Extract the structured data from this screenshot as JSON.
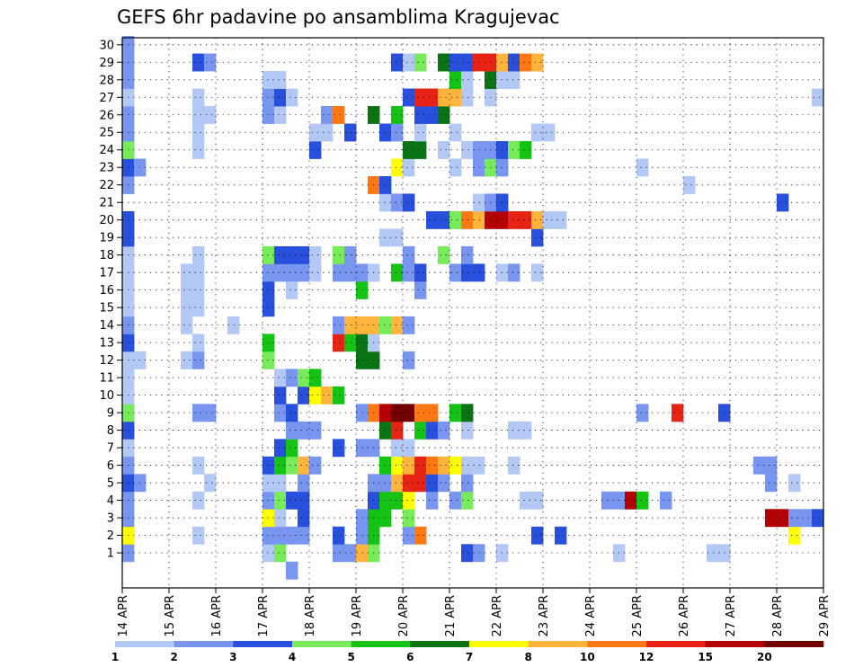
{
  "chart_data": {
    "type": "heatmap",
    "title": "GEFS 6hr padavine po ansamblima Kragujevac",
    "xlabel": "",
    "ylabel": "",
    "x_ticks": [
      "14 APR",
      "15 APR",
      "16 APR",
      "17 APR",
      "18 APR",
      "19 APR",
      "20 APR",
      "21 APR",
      "22 APR",
      "23 APR",
      "24 APR",
      "25 APR",
      "26 APR",
      "27 APR",
      "28 APR",
      "29 APR"
    ],
    "y_ticks": [
      "1",
      "2",
      "3",
      "4",
      "5",
      "6",
      "7",
      "8",
      "9",
      "10",
      "11",
      "12",
      "13",
      "14",
      "15",
      "16",
      "17",
      "18",
      "19",
      "20",
      "21",
      "22",
      "23",
      "24",
      "25",
      "26",
      "27",
      "28",
      "29",
      "30"
    ],
    "x_range": [
      "14 APR",
      "29 APR"
    ],
    "y_range": [
      1,
      30
    ],
    "time_step": "6hr",
    "grid": true,
    "colorbar": {
      "levels": [
        "1",
        "2",
        "3",
        "4",
        "5",
        "6",
        "7",
        "8",
        "10",
        "12",
        "15",
        "20"
      ],
      "colors": [
        "#b4c8f5",
        "#7896f0",
        "#2850dc",
        "#78eb5a",
        "#14c314",
        "#0a7314",
        "#ffff00",
        "#ffb43c",
        "#ff7814",
        "#e62314",
        "#b40000",
        "#730000"
      ]
    },
    "palette_keys": {
      "a": "#b4c8f5",
      "b": "#7896f0",
      "c": "#2850dc",
      "d": "#78eb5a",
      "e": "#14c314",
      "f": "#0a7314",
      "g": "#ffff00",
      "h": "#ffb43c",
      "i": "#ff7814",
      "j": "#e62314",
      "k": "#b40000",
      "l": "#730000"
    },
    "rows": {
      "30": "b...........................................................",
      "29": "b.....cb...............cad.fccjjhcih...........................a.....a.......",
      "28": "b...........aa..............ea.faa.......................................cc.da.ab.......b",
      "27": "a.....a.....bca.........cjjhha.a...........................aa...ba.a...",
      "26": "b.....aa....ba...bi..f.e.ccf................................................f",
      "25": "b.....a.........aa.c..cb.a..a......aa.........................c...c.a......cb",
      "24": "d.....a.........c.......ff.a.abbcde",
      "23": "cb.....................ga...a.bdb...........a",
      "22": "b....................ic.........................a",
      "21": "......................abc.....abc.......................c............a.",
      "20": "c.........................ccdihkkjjhaa",
      "19": "c.....................aa...........c....................................ab",
      "18": "a.....a.....dccca.db....b..d.b.................................................f.c",
      "17": "a....aa.....bbbba.bbba.ebc..bcc.ab.a..................................aa",
      "16": "a....aa.....c.a.....e....b.........................................................",
      "15": "a....aa.....c..................................................................",
      "14": "b....a...a........bhhhdhb",
      "13": "c.....a.....e.....jefa",
      "12": "aa...ab.....d.......ff..b",
      "11": "a............abde.....................................................",
      "10": "a............c.cghe.............................................hb",
      "9": "d.....bb.....bc.....bikllii.ef..............b..j...c",
      "8": "c.............bbb.....fj.ecb.a...aa..............................c.....be.b",
      "7": "a............ce...c.bb.aa",
      "6": "b.....a.....cedhb.....eghjihgaa..a....................bb...........cea",
      "5": "cb.....a....aa.b.....bbhjjcb.b.........................b.a..be.b",
      "4": "b.....a.....bdcc.....ceeg.b.bd....aa.....bbke.b",
      "3": "b...........ga.c....bee.d..............................kkbbc.a...aaaa..aaaa",
      "2": "g.....a.....bbbb..c.be..bi.........c.c...................g",
      "1": "b...........ad....bbhd.......cb.a.........a.......aa",
      "0": "..............b......................................................a.."
    }
  }
}
